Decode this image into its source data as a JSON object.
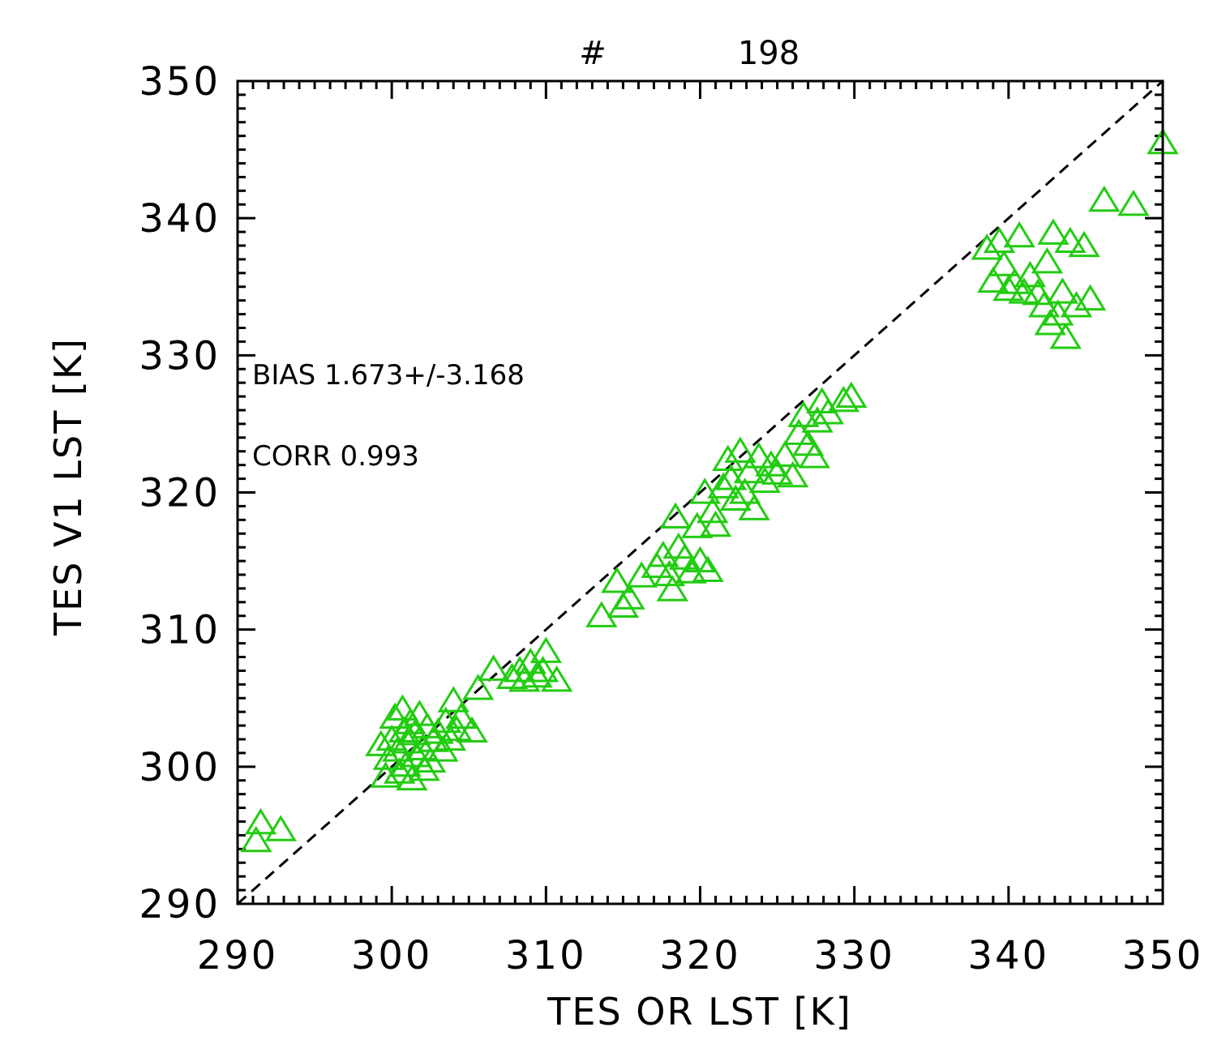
{
  "chart_data": {
    "type": "scatter",
    "header": {
      "hash": "#",
      "count": "198"
    },
    "xlabel": "TES OR LST [K]",
    "ylabel": "TES V1 LST [K]",
    "xlim": [
      290,
      350
    ],
    "ylim": [
      290,
      350
    ],
    "xticks": [
      "290",
      "300",
      "310",
      "320",
      "330",
      "340",
      "350"
    ],
    "yticks": [
      "290",
      "300",
      "310",
      "320",
      "330",
      "340",
      "350"
    ],
    "annotations": [
      {
        "text": "BIAS 1.673+/-3.168"
      },
      {
        "text": "CORR 0.993"
      }
    ],
    "reference_line": {
      "style": "dashed",
      "x": [
        290,
        350
      ],
      "y": [
        290,
        350
      ]
    },
    "marker": {
      "shape": "triangle-open",
      "color": "#22cc11"
    },
    "series": [
      {
        "points": [
          [
            291.5,
            295.9
          ],
          [
            291.2,
            294.6
          ],
          [
            292.8,
            295.4
          ],
          [
            299.3,
            301.6
          ],
          [
            299.6,
            299.3
          ],
          [
            299.8,
            300.6
          ],
          [
            300.0,
            302.0
          ],
          [
            300.2,
            303.6
          ],
          [
            300.4,
            301.2
          ],
          [
            300.5,
            299.6
          ],
          [
            300.7,
            304.2
          ],
          [
            300.8,
            302.6
          ],
          [
            300.9,
            300.1
          ],
          [
            301.0,
            301.8
          ],
          [
            301.2,
            303.2
          ],
          [
            301.3,
            299.1
          ],
          [
            301.5,
            302.4
          ],
          [
            301.6,
            300.8
          ],
          [
            301.8,
            303.8
          ],
          [
            302.0,
            301.3
          ],
          [
            302.1,
            299.8
          ],
          [
            302.3,
            302.9
          ],
          [
            302.5,
            300.4
          ],
          [
            302.7,
            301.9
          ],
          [
            303.0,
            302.5
          ],
          [
            303.3,
            301.2
          ],
          [
            303.5,
            303.3
          ],
          [
            303.8,
            302.0
          ],
          [
            304.0,
            304.8
          ],
          [
            304.2,
            302.7
          ],
          [
            304.5,
            303.6
          ],
          [
            305.2,
            302.6
          ],
          [
            305.6,
            305.7
          ],
          [
            306.6,
            307.1
          ],
          [
            307.8,
            306.5
          ],
          [
            308.3,
            307.0
          ],
          [
            308.6,
            306.3
          ],
          [
            309.0,
            307.6
          ],
          [
            309.4,
            306.6
          ],
          [
            310.0,
            308.4
          ],
          [
            310.7,
            306.3
          ],
          [
            309.8,
            307.0
          ],
          [
            313.6,
            311.0
          ],
          [
            314.6,
            313.5
          ],
          [
            315.0,
            311.7
          ],
          [
            315.4,
            312.3
          ],
          [
            316.2,
            313.9
          ],
          [
            317.2,
            314.6
          ],
          [
            317.6,
            315.4
          ],
          [
            318.0,
            314.0
          ],
          [
            318.2,
            312.9
          ],
          [
            318.4,
            318.2
          ],
          [
            318.6,
            316.0
          ],
          [
            319.0,
            315.2
          ],
          [
            319.4,
            314.2
          ],
          [
            320.0,
            315.0
          ],
          [
            320.5,
            314.3
          ],
          [
            319.8,
            317.5
          ],
          [
            320.3,
            320.0
          ],
          [
            320.8,
            318.6
          ],
          [
            321.0,
            317.6
          ],
          [
            321.5,
            320.4
          ],
          [
            321.8,
            322.4
          ],
          [
            322.0,
            321.0
          ],
          [
            322.3,
            319.5
          ],
          [
            322.6,
            323.0
          ],
          [
            322.9,
            320.0
          ],
          [
            323.2,
            321.5
          ],
          [
            323.5,
            318.8
          ],
          [
            323.8,
            322.6
          ],
          [
            324.2,
            320.8
          ],
          [
            324.6,
            322.0
          ],
          [
            325.0,
            321.4
          ],
          [
            325.5,
            322.7
          ],
          [
            326.0,
            321.2
          ],
          [
            326.4,
            324.3
          ],
          [
            326.7,
            325.6
          ],
          [
            327.0,
            323.5
          ],
          [
            327.4,
            322.6
          ],
          [
            327.6,
            325.2
          ],
          [
            327.9,
            326.6
          ],
          [
            328.3,
            325.8
          ],
          [
            329.3,
            326.7
          ],
          [
            329.8,
            327.0
          ],
          [
            338.6,
            337.8
          ],
          [
            339.0,
            335.4
          ],
          [
            339.4,
            338.3
          ],
          [
            339.7,
            336.6
          ],
          [
            340.0,
            334.8
          ],
          [
            340.4,
            335.3
          ],
          [
            340.7,
            338.7
          ],
          [
            341.0,
            334.6
          ],
          [
            341.4,
            335.8
          ],
          [
            341.9,
            334.5
          ],
          [
            342.3,
            333.6
          ],
          [
            342.5,
            336.8
          ],
          [
            342.7,
            332.3
          ],
          [
            342.9,
            338.9
          ],
          [
            343.2,
            333.0
          ],
          [
            343.5,
            334.6
          ],
          [
            343.7,
            331.3
          ],
          [
            344.0,
            338.3
          ],
          [
            344.4,
            333.6
          ],
          [
            344.9,
            338.0
          ],
          [
            345.3,
            334.1
          ],
          [
            346.2,
            341.3
          ],
          [
            348.1,
            341.0
          ],
          [
            350.0,
            345.5
          ]
        ]
      }
    ]
  }
}
